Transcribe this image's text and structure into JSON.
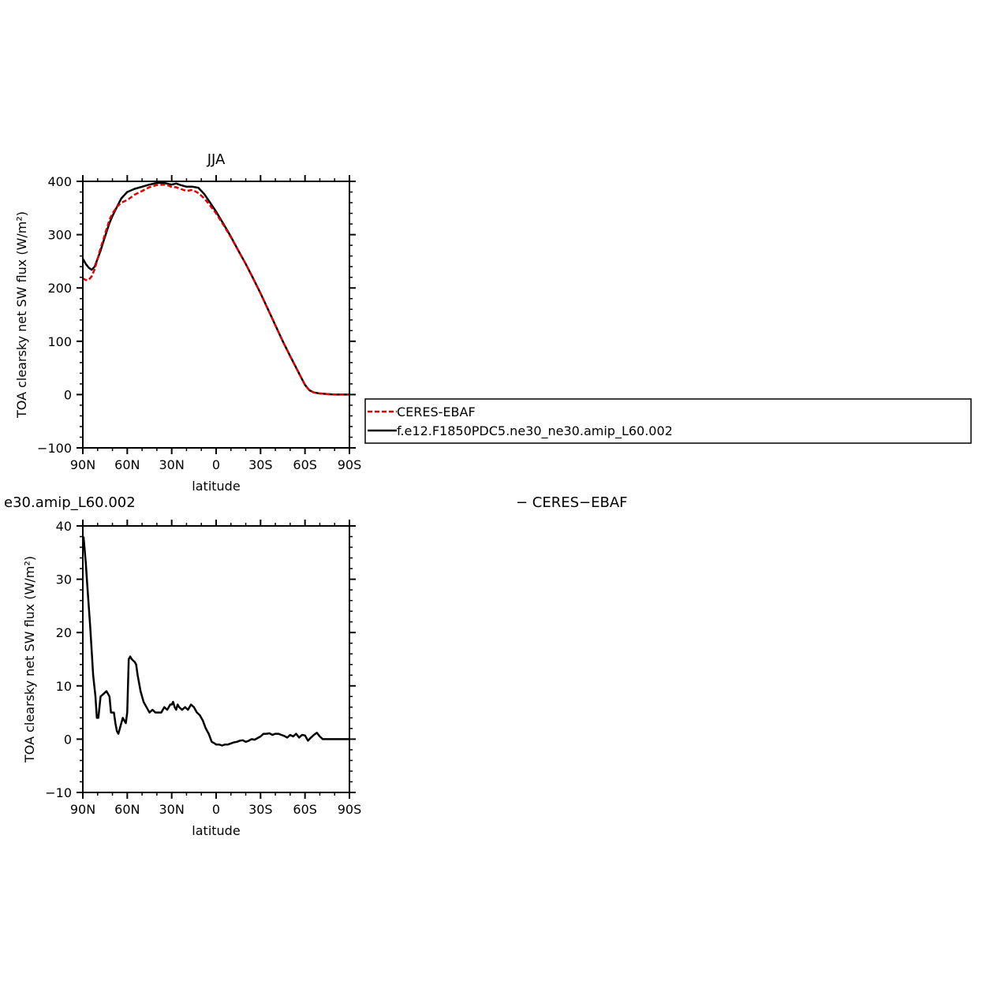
{
  "chart_data": [
    {
      "type": "line",
      "title": "JJA",
      "xlabel": "latitude",
      "ylabel": "TOA clearsky net SW flux (W/m²)",
      "xlim": [
        90,
        -90
      ],
      "ylim": [
        -100,
        400
      ],
      "xticks": [
        90,
        60,
        30,
        0,
        -30,
        -60,
        -90
      ],
      "xtick_labels": [
        "90N",
        "60N",
        "30N",
        "0",
        "30S",
        "60S",
        "90S"
      ],
      "yticks": [
        -100,
        0,
        100,
        200,
        300,
        400
      ],
      "ytick_labels": [
        "−100",
        "0",
        "100",
        "200",
        "300",
        "400"
      ],
      "legend_position": "right",
      "series": [
        {
          "name": "CERES-EBAF",
          "color": "#e00000",
          "dashed": true,
          "x": [
            90,
            88,
            86,
            84,
            82,
            80,
            78,
            76,
            74,
            72,
            70,
            67,
            64,
            60,
            55,
            50,
            45,
            40,
            35,
            32,
            30,
            27,
            24,
            20,
            16,
            12,
            8,
            5,
            0,
            -5,
            -10,
            -15,
            -20,
            -25,
            -30,
            -35,
            -40,
            -45,
            -50,
            -55,
            -60,
            -63,
            -66,
            -70,
            -75,
            -80,
            -85,
            -90
          ],
          "y": [
            218,
            215,
            215,
            222,
            235,
            255,
            275,
            292,
            310,
            328,
            340,
            352,
            360,
            365,
            375,
            382,
            389,
            393,
            394,
            392,
            389,
            389,
            386,
            382,
            384,
            378,
            368,
            358,
            340,
            318,
            295,
            270,
            245,
            218,
            190,
            160,
            130,
            100,
            72,
            45,
            18,
            8,
            4,
            2,
            1,
            0,
            0,
            0
          ]
        },
        {
          "name": "f.e12.F1850PDC5.ne30_ne30.amip_L60.002",
          "color": "#000000",
          "dashed": false,
          "x": [
            90,
            88,
            86,
            84,
            82,
            80,
            78,
            76,
            74,
            72,
            70,
            67,
            64,
            60,
            55,
            50,
            45,
            40,
            35,
            32,
            30,
            27,
            24,
            20,
            16,
            12,
            8,
            5,
            0,
            -5,
            -10,
            -15,
            -20,
            -25,
            -30,
            -35,
            -40,
            -45,
            -50,
            -55,
            -60,
            -63,
            -66,
            -70,
            -75,
            -80,
            -85,
            -90
          ],
          "y": [
            255,
            245,
            238,
            234,
            240,
            255,
            270,
            288,
            305,
            322,
            335,
            352,
            368,
            380,
            386,
            390,
            394,
            397,
            397,
            395,
            394,
            396,
            393,
            390,
            390,
            388,
            376,
            364,
            343,
            320,
            296,
            270,
            245,
            218,
            190,
            160,
            130,
            100,
            72,
            45,
            18,
            8,
            4,
            2,
            1,
            0,
            0,
            0
          ]
        }
      ]
    },
    {
      "type": "line",
      "title": "e30.amip_L60.002",
      "title_right": "− CERES−EBAF",
      "xlabel": "latitude",
      "ylabel": "TOA clearsky net SW flux (W/m²)",
      "xlim": [
        90,
        -90
      ],
      "ylim": [
        -10,
        40
      ],
      "xticks": [
        90,
        60,
        30,
        0,
        -30,
        -60,
        -90
      ],
      "xtick_labels": [
        "90N",
        "60N",
        "30N",
        "0",
        "30S",
        "60S",
        "90S"
      ],
      "yticks": [
        -10,
        0,
        10,
        20,
        30,
        40
      ],
      "ytick_labels": [
        "−10",
        "0",
        "10",
        "20",
        "30",
        "40"
      ],
      "series": [
        {
          "color": "#000000",
          "dashed": false,
          "x": [
            89.5,
            88,
            87,
            85,
            83,
            81.5,
            80.5,
            79.5,
            78,
            76,
            74,
            73,
            72,
            71,
            70,
            69,
            68,
            67,
            66,
            65,
            64,
            63,
            62,
            61,
            60,
            59,
            58,
            57,
            55,
            54,
            53,
            51,
            49,
            47,
            45,
            43,
            41,
            39,
            37,
            35,
            33,
            31,
            30,
            29,
            28,
            27,
            26,
            25,
            23,
            21,
            19,
            17,
            15,
            13,
            11,
            10,
            9,
            7,
            5,
            3,
            1,
            0,
            -2,
            -4,
            -6,
            -8,
            -10,
            -12,
            -14,
            -16,
            -18,
            -20,
            -22,
            -24,
            -26,
            -28,
            -30,
            -32,
            -34,
            -36,
            -38,
            -40,
            -42,
            -44,
            -46,
            -48,
            -50,
            -52,
            -54,
            -56,
            -58,
            -60,
            -62,
            -64,
            -66,
            -68,
            -70,
            -72,
            -74,
            -76,
            -78,
            -80,
            -82,
            -84,
            -86,
            -88,
            -90
          ],
          "y": [
            38,
            33,
            29,
            21,
            12,
            8,
            4,
            4,
            8,
            8.5,
            9,
            8.5,
            8,
            5,
            5,
            5,
            3,
            1.5,
            1,
            2,
            3,
            4,
            3.5,
            3,
            5,
            15,
            15.5,
            15,
            14.5,
            14,
            12,
            9,
            7,
            6,
            5,
            5.5,
            5,
            5,
            5,
            6,
            5.5,
            6.5,
            6.5,
            7,
            6,
            5.5,
            6.5,
            6,
            5.5,
            6,
            5.5,
            6.5,
            6,
            5,
            4.5,
            4,
            3.5,
            2,
            1,
            -0.5,
            -0.8,
            -1,
            -1,
            -1.2,
            -1,
            -1,
            -0.8,
            -0.6,
            -0.5,
            -0.3,
            -0.2,
            -0.5,
            -0.3,
            0,
            -0.1,
            0.2,
            0.5,
            1,
            1,
            1.1,
            0.8,
            1,
            1,
            0.8,
            0.6,
            0.3,
            0.8,
            0.5,
            1,
            0.3,
            0.8,
            0.7,
            -0.3,
            0.3,
            0.8,
            1.2,
            0.5,
            0,
            0,
            0,
            0,
            0,
            0,
            0,
            0,
            0,
            0
          ]
        }
      ]
    }
  ]
}
